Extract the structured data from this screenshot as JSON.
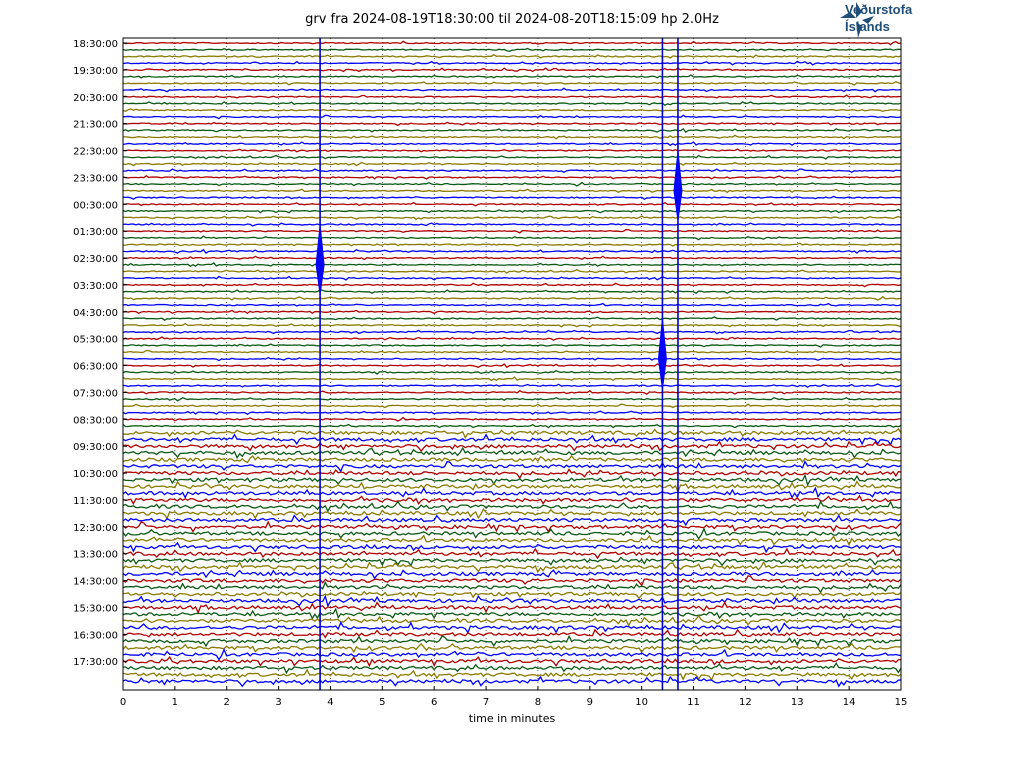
{
  "header": {
    "title": "grv fra 2024-08-19T18:30:00 til 2024-08-20T18:15:09 hp 2.0Hz",
    "logo_line1": "Veðurstofa",
    "logo_line2": "Íslands"
  },
  "chart_data": {
    "type": "line",
    "title": "grv fra 2024-08-19T18:30:00 til 2024-08-20T18:15:09 hp 2.0Hz",
    "xlabel": "time in minutes",
    "ylabel": "",
    "xlim": [
      0,
      15
    ],
    "x_ticks": [
      0,
      1,
      2,
      3,
      4,
      5,
      6,
      7,
      8,
      9,
      10,
      11,
      12,
      13,
      14,
      15
    ],
    "y_tick_labels": [
      "18:30:00",
      "19:30:00",
      "20:30:00",
      "21:30:00",
      "22:30:00",
      "23:30:00",
      "00:30:00",
      "01:30:00",
      "02:30:00",
      "03:30:00",
      "04:30:00",
      "05:30:00",
      "06:30:00",
      "07:30:00",
      "08:30:00",
      "09:30:00",
      "10:30:00",
      "11:30:00",
      "12:30:00",
      "13:30:00",
      "14:30:00",
      "15:30:00",
      "16:30:00",
      "17:30:00"
    ],
    "trace_count": 96,
    "trace_minutes": 15,
    "trace_colors": [
      "#b00000",
      "#0b5a14",
      "#8b7a00",
      "#0000ff"
    ],
    "grid": "vertical dotted at each minute",
    "events": [
      {
        "label": "large event",
        "minute": 3.8,
        "trace": 33
      },
      {
        "label": "large event",
        "minute": 10.4,
        "trace": 47
      },
      {
        "label": "event",
        "minute": 10.7,
        "trace": 22
      }
    ]
  },
  "colors": {
    "axis": "#000000",
    "logo": "#1f4e79"
  }
}
